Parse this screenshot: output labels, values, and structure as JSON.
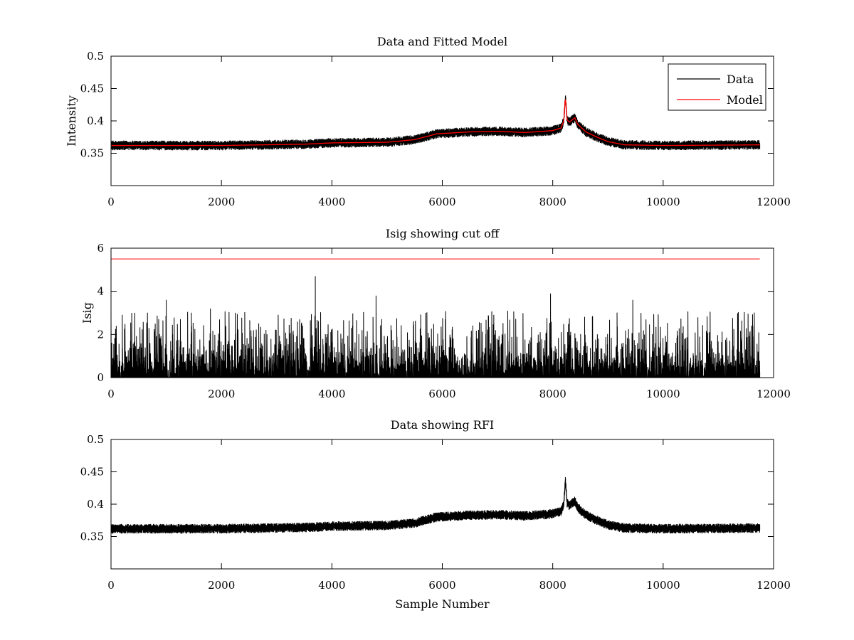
{
  "chart_data": [
    {
      "type": "line",
      "title": "Data and Fitted Model",
      "xlabel": "",
      "ylabel": "Intensity",
      "xlim": [
        0,
        12000
      ],
      "ylim": [
        0.3,
        0.5
      ],
      "xticks": [
        0,
        2000,
        4000,
        6000,
        8000,
        10000,
        12000
      ],
      "yticks": [
        0.35,
        0.4,
        0.45,
        0.5
      ],
      "ytick_labels": [
        "0.35",
        "0.4",
        "0.45",
        "0.5"
      ],
      "grid": false,
      "legend": {
        "position": "top-right",
        "entries": [
          "Data",
          "Model"
        ]
      },
      "sample_count": 11750,
      "series": [
        {
          "name": "Data",
          "color": "#000000",
          "noise_amplitude": 0.005,
          "x": [
            0,
            2000,
            3500,
            4000,
            5000,
            5500,
            5900,
            6500,
            7000,
            7500,
            8000,
            8150,
            8200,
            8230,
            8260,
            8300,
            8400,
            8450,
            8600,
            8800,
            9000,
            9300,
            10000,
            11750
          ],
          "y": [
            0.362,
            0.362,
            0.364,
            0.366,
            0.367,
            0.371,
            0.38,
            0.383,
            0.384,
            0.382,
            0.385,
            0.389,
            0.4,
            0.437,
            0.402,
            0.398,
            0.405,
            0.395,
            0.383,
            0.375,
            0.368,
            0.363,
            0.362,
            0.363
          ]
        },
        {
          "name": "Model",
          "color": "#ff0000",
          "x": [
            0,
            2000,
            3500,
            4000,
            5000,
            5500,
            5900,
            6500,
            7000,
            7500,
            8000,
            8150,
            8200,
            8230,
            8260,
            8300,
            8400,
            8450,
            8600,
            8800,
            9000,
            9300,
            10000,
            11750
          ],
          "y": [
            0.362,
            0.362,
            0.364,
            0.366,
            0.367,
            0.371,
            0.38,
            0.383,
            0.384,
            0.382,
            0.385,
            0.389,
            0.4,
            0.437,
            0.402,
            0.398,
            0.405,
            0.395,
            0.383,
            0.375,
            0.368,
            0.363,
            0.362,
            0.363
          ]
        }
      ]
    },
    {
      "type": "line",
      "title": "Isig showing cut off",
      "xlabel": "",
      "ylabel": "Isig",
      "xlim": [
        0,
        12000
      ],
      "ylim": [
        0,
        6
      ],
      "xticks": [
        0,
        2000,
        4000,
        6000,
        8000,
        10000,
        12000
      ],
      "yticks": [
        0,
        2,
        4,
        6
      ],
      "ytick_labels": [
        "0",
        "2",
        "4",
        "6"
      ],
      "grid": false,
      "sample_count": 11750,
      "series": [
        {
          "color": "#000000",
          "typical_max": 1.8,
          "spikes": {
            "x": [
              1000,
              1800,
              3700,
              4800,
              5700,
              7960,
              9450
            ],
            "y": [
              3.6,
              3.2,
              4.7,
              3.8,
              3.0,
              3.9,
              3.6
            ]
          }
        },
        {
          "color": "#ff0000",
          "x": [
            0,
            11750
          ],
          "y": [
            5.5,
            5.5
          ]
        }
      ]
    },
    {
      "type": "line",
      "title": "Data showing RFI",
      "xlabel": "Sample Number",
      "ylabel": "",
      "xlim": [
        0,
        12000
      ],
      "ylim": [
        0.3,
        0.5
      ],
      "xticks": [
        0,
        2000,
        4000,
        6000,
        8000,
        10000,
        12000
      ],
      "yticks": [
        0.35,
        0.4,
        0.45,
        0.5
      ],
      "ytick_labels": [
        "0.35",
        "0.4",
        "0.45",
        "0.5"
      ],
      "grid": false,
      "sample_count": 11750,
      "series": [
        {
          "color": "#000000",
          "noise_amplitude": 0.005,
          "x": [
            0,
            2000,
            3500,
            4000,
            5000,
            5500,
            5900,
            6500,
            7000,
            7500,
            8000,
            8150,
            8200,
            8230,
            8260,
            8300,
            8400,
            8450,
            8600,
            8800,
            9000,
            9300,
            10000,
            11750
          ],
          "y": [
            0.362,
            0.362,
            0.364,
            0.366,
            0.367,
            0.371,
            0.38,
            0.383,
            0.384,
            0.382,
            0.385,
            0.389,
            0.4,
            0.437,
            0.402,
            0.398,
            0.405,
            0.395,
            0.383,
            0.375,
            0.368,
            0.363,
            0.362,
            0.363
          ]
        }
      ]
    }
  ]
}
